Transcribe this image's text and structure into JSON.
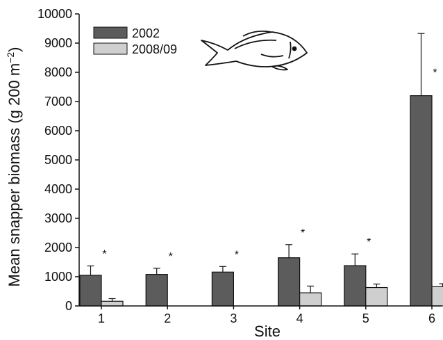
{
  "chart_data": {
    "type": "bar",
    "xlabel": "Site",
    "ylabel": "Mean snapper biomass (g 200 m",
    "ylabel_sup": "−2",
    "ylabel_close": ")",
    "ylim": [
      0,
      10000
    ],
    "yticks": [
      0,
      1000,
      2000,
      3000,
      4000,
      5000,
      6000,
      7000,
      8000,
      9000,
      10000
    ],
    "categories": [
      "1",
      "2",
      "3",
      "4",
      "5",
      "6"
    ],
    "series": [
      {
        "name": "2002",
        "color": "#5c5c5c",
        "values": [
          1050,
          1080,
          1160,
          1650,
          1380,
          7200
        ],
        "errors": [
          320,
          210,
          190,
          450,
          400,
          2130
        ]
      },
      {
        "name": "2008/09",
        "color": "#cfcfcf",
        "values": [
          160,
          null,
          null,
          450,
          630,
          660
        ],
        "errors": [
          90,
          null,
          null,
          230,
          120,
          100
        ]
      }
    ],
    "annotations": [
      "*",
      "*",
      "*",
      "*",
      "*",
      "*"
    ],
    "legend": "top-left",
    "grid": false,
    "decoration": "fish-drawing"
  }
}
